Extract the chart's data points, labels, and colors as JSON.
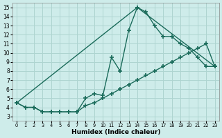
{
  "xlabel": "Humidex (Indice chaleur)",
  "xlim": [
    -0.5,
    23.5
  ],
  "ylim": [
    2.5,
    15.5
  ],
  "xticks": [
    0,
    1,
    2,
    3,
    4,
    5,
    6,
    7,
    8,
    9,
    10,
    11,
    12,
    13,
    14,
    15,
    16,
    17,
    18,
    19,
    20,
    21,
    22,
    23
  ],
  "yticks": [
    3,
    4,
    5,
    6,
    7,
    8,
    9,
    10,
    11,
    12,
    13,
    14,
    15
  ],
  "bg_color": "#ceecea",
  "grid_color": "#aed4d0",
  "line_color": "#1a6b5a",
  "line1_x": [
    0,
    1,
    2,
    3,
    4,
    5,
    6,
    7,
    8,
    9,
    10,
    11,
    12,
    13,
    14,
    15,
    16,
    17,
    18,
    19,
    20,
    21,
    22,
    23
  ],
  "line1_y": [
    4.5,
    4.0,
    4.0,
    3.5,
    3.5,
    3.5,
    3.5,
    3.5,
    5.0,
    5.5,
    5.3,
    9.5,
    8.0,
    12.5,
    15.0,
    14.5,
    13.0,
    11.8,
    11.8,
    11.0,
    10.5,
    9.5,
    8.5,
    8.5
  ],
  "line2_x": [
    0,
    1,
    2,
    3,
    4,
    5,
    6,
    7,
    8,
    9,
    10,
    11,
    12,
    13,
    14,
    15,
    16,
    17,
    18,
    19,
    20,
    21,
    22,
    23
  ],
  "line2_y": [
    4.5,
    4.0,
    4.0,
    3.5,
    3.5,
    3.5,
    3.5,
    3.5,
    4.2,
    4.5,
    5.0,
    5.5,
    6.0,
    6.5,
    7.0,
    7.5,
    8.0,
    8.5,
    9.0,
    9.5,
    10.0,
    10.5,
    11.0,
    8.5
  ],
  "line3_x": [
    0,
    14,
    23
  ],
  "line3_y": [
    4.5,
    15.0,
    8.5
  ]
}
